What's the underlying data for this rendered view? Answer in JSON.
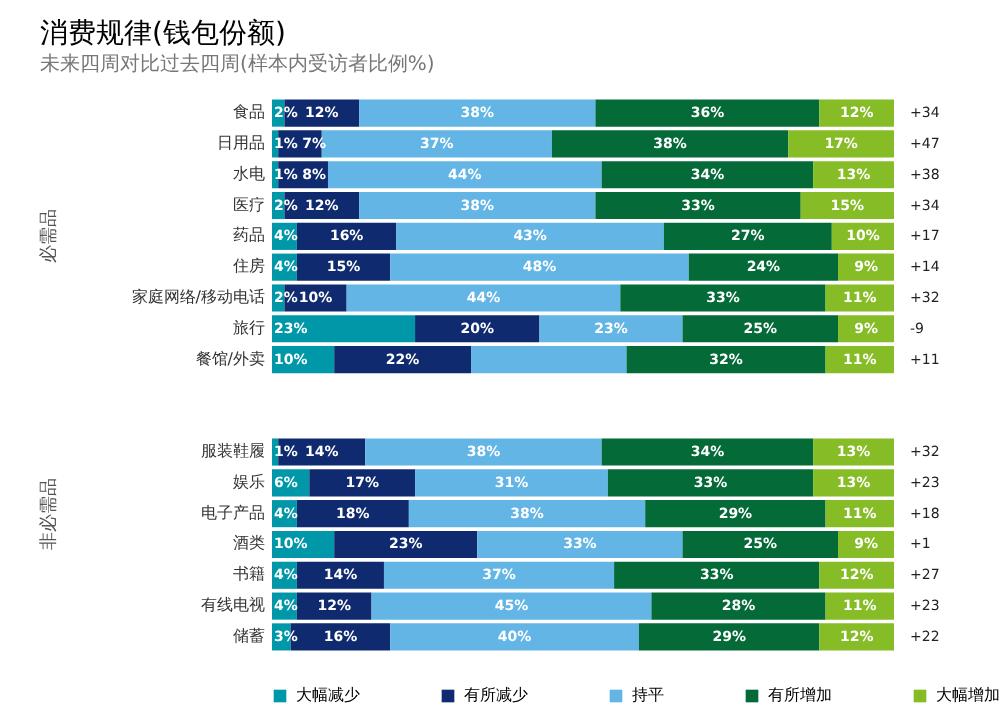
{
  "chart_data": {
    "type": "bar",
    "orientation": "horizontal",
    "stacked": true,
    "title": "消费规律(钱包份额)",
    "subtitle": "未来四周对比过去四周(样本内受访者比例%)",
    "categories": [
      "食品",
      "日用品",
      "水电",
      "医疗",
      "药品",
      "住房",
      "家庭网络/移动电话",
      "旅行",
      "餐馆/外卖",
      null,
      null,
      "服装鞋履",
      "娱乐",
      "电子产品",
      "酒类",
      "书籍",
      "有线电视",
      "储蓄"
    ],
    "series": [
      {
        "name": "大幅减少",
        "color": "#0097a9",
        "values": [
          2,
          1,
          1,
          2,
          4,
          4,
          2,
          23,
          10,
          null,
          null,
          1,
          6,
          4,
          10,
          4,
          4,
          3
        ],
        "value_labels": [
          "2%",
          "1%",
          "1%",
          "2%",
          "4%",
          "4%",
          "2%",
          "23%",
          "10%",
          null,
          null,
          "1%",
          "6%",
          "4%",
          "10%",
          "4%",
          "4%",
          "3%"
        ]
      },
      {
        "name": "有所减少",
        "color": "#0f2a6e",
        "values": [
          12,
          7,
          8,
          12,
          16,
          15,
          10,
          20,
          22,
          null,
          null,
          14,
          17,
          18,
          23,
          14,
          12,
          16
        ],
        "value_labels": [
          "12%",
          "7%",
          "8%",
          "12%",
          "16%",
          "15%",
          "10%",
          "20%",
          "22%",
          null,
          null,
          "14%",
          "17%",
          "18%",
          "23%",
          "14%",
          "12%",
          "16%"
        ]
      },
      {
        "name": "持平",
        "color": "#62b5e5",
        "values": [
          38,
          37,
          44,
          38,
          43,
          48,
          44,
          23,
          25,
          null,
          null,
          38,
          31,
          38,
          33,
          37,
          45,
          40
        ],
        "value_labels": [
          "38%",
          "37%",
          "44%",
          "38%",
          "43%",
          "48%",
          "44%",
          "23%",
          null,
          null,
          null,
          "38%",
          "31%",
          "38%",
          "33%",
          "37%",
          "45%",
          "40%"
        ]
      },
      {
        "name": "有所增加",
        "color": "#046a38",
        "values": [
          36,
          38,
          34,
          33,
          27,
          24,
          33,
          25,
          32,
          null,
          null,
          34,
          33,
          29,
          25,
          33,
          28,
          29
        ],
        "value_labels": [
          "36%",
          "38%",
          "34%",
          "33%",
          "27%",
          "24%",
          "33%",
          "25%",
          "32%",
          null,
          null,
          "34%",
          "33%",
          "29%",
          "25%",
          "33%",
          "28%",
          "29%"
        ]
      },
      {
        "name": "大幅增加",
        "color": "#86bc25",
        "values": [
          12,
          17,
          13,
          15,
          10,
          9,
          11,
          9,
          11,
          null,
          null,
          13,
          13,
          11,
          9,
          12,
          11,
          12
        ],
        "value_labels": [
          "12%",
          "17%",
          "13%",
          "15%",
          "10%",
          "9%",
          "11%",
          "9%",
          "11%",
          null,
          null,
          "13%",
          "13%",
          "11%",
          "9%",
          "12%",
          "11%",
          "12%"
        ]
      }
    ],
    "annotations": [
      "必需品",
      "非必需品",
      "+34",
      "+47",
      "+38",
      "+34",
      "+17",
      "+14",
      "+32",
      "-9",
      "+11",
      "+32",
      "+23",
      "+18",
      "+1",
      "+27",
      "+23",
      "+22"
    ],
    "legend": "bottom"
  }
}
